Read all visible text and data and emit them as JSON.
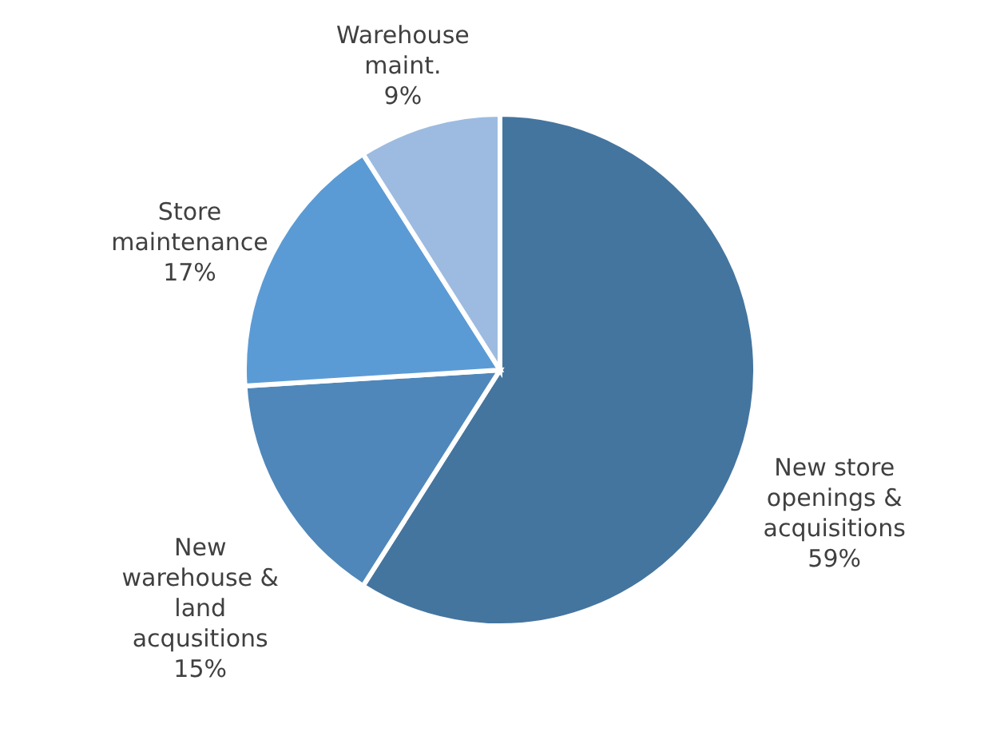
{
  "chart_data": {
    "type": "pie",
    "categories": [
      "New store openings & acquisitions",
      "New warehouse & land acqusitions",
      "Store maintenance",
      "Warehouse maint."
    ],
    "values": [
      59,
      15,
      17,
      9
    ],
    "value_labels": [
      "59%",
      "15%",
      "17%",
      "9%"
    ],
    "colors": [
      "#44759f",
      "#4f87ba",
      "#5b9bd5",
      "#9dbbe0"
    ]
  }
}
